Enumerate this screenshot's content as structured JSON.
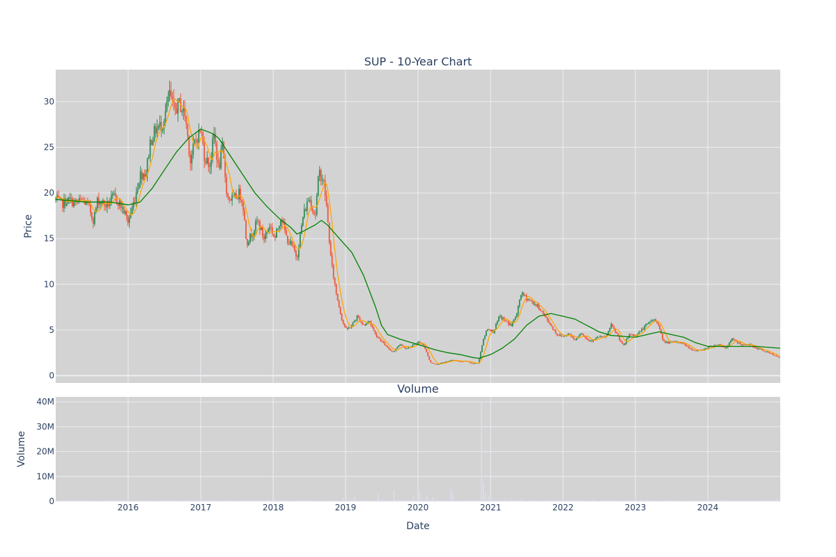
{
  "colors": {
    "plot_bg": "#d3d3d3",
    "grid": "#ebeef3",
    "text": "#2a3f5f",
    "up": "#2e8b57",
    "down": "#ef553b",
    "ma_short": "#ffa500",
    "ma_long": "#008000",
    "volume": "#dcdcf0"
  },
  "chart_data": [
    {
      "type": "candlestick",
      "title": "SUP - 10-Year Chart",
      "xlabel": "",
      "ylabel": "Price",
      "x_range": [
        "2015-01-01",
        "2024-12-31"
      ],
      "ylim": [
        -0.8,
        33.5
      ],
      "y_ticks": [
        0,
        5,
        10,
        15,
        20,
        25,
        30
      ],
      "x_ticks": [
        "2016",
        "2017",
        "2018",
        "2019",
        "2020",
        "2021",
        "2022",
        "2023",
        "2024"
      ],
      "grid": true,
      "price_path": [
        [
          "2015-01-01",
          19.3
        ],
        [
          "2015-02-01",
          18.8
        ],
        [
          "2015-03-01",
          19.2
        ],
        [
          "2015-04-15",
          18.9
        ],
        [
          "2015-05-15",
          19.2
        ],
        [
          "2015-06-15",
          18.6
        ],
        [
          "2015-07-10",
          17.0
        ],
        [
          "2015-08-01",
          19.3
        ],
        [
          "2015-09-15",
          18.6
        ],
        [
          "2015-10-20",
          19.6
        ],
        [
          "2015-11-15",
          19.0
        ],
        [
          "2015-12-15",
          17.8
        ],
        [
          "2016-01-01",
          16.8
        ],
        [
          "2016-02-01",
          19.2
        ],
        [
          "2016-03-01",
          22.0
        ],
        [
          "2016-04-01",
          22.3
        ],
        [
          "2016-04-20",
          25.5
        ],
        [
          "2016-05-20",
          27.0
        ],
        [
          "2016-06-20",
          27.5
        ],
        [
          "2016-07-15",
          29.5
        ],
        [
          "2016-07-25",
          31.0
        ],
        [
          "2016-08-20",
          29.0
        ],
        [
          "2016-09-15",
          29.8
        ],
        [
          "2016-10-15",
          28.5
        ],
        [
          "2016-11-10",
          23.5
        ],
        [
          "2016-12-01",
          25.5
        ],
        [
          "2017-01-01",
          27.0
        ],
        [
          "2017-01-20",
          24.0
        ],
        [
          "2017-02-15",
          23.0
        ],
        [
          "2017-03-10",
          26.5
        ],
        [
          "2017-04-01",
          22.5
        ],
        [
          "2017-04-20",
          25.0
        ],
        [
          "2017-05-15",
          19.5
        ],
        [
          "2017-06-15",
          19.3
        ],
        [
          "2017-07-15",
          20.0
        ],
        [
          "2017-08-01",
          19.0
        ],
        [
          "2017-08-20",
          14.5
        ],
        [
          "2017-09-15",
          15.5
        ],
        [
          "2017-10-15",
          17.0
        ],
        [
          "2017-11-15",
          15.0
        ],
        [
          "2017-12-15",
          16.5
        ],
        [
          "2018-01-10",
          15.0
        ],
        [
          "2018-02-10",
          17.5
        ],
        [
          "2018-03-10",
          15.0
        ],
        [
          "2018-04-10",
          14.0
        ],
        [
          "2018-05-01",
          13.0
        ],
        [
          "2018-06-01",
          17.5
        ],
        [
          "2018-07-01",
          19.5
        ],
        [
          "2018-08-01",
          17.5
        ],
        [
          "2018-08-20",
          22.3
        ],
        [
          "2018-09-10",
          21.5
        ],
        [
          "2018-09-25",
          19.0
        ],
        [
          "2018-10-20",
          12.5
        ],
        [
          "2018-11-15",
          9.0
        ],
        [
          "2018-12-15",
          6.0
        ],
        [
          "2019-01-05",
          5.0
        ],
        [
          "2019-02-01",
          5.5
        ],
        [
          "2019-03-01",
          6.5
        ],
        [
          "2019-04-01",
          5.5
        ],
        [
          "2019-05-01",
          6.0
        ],
        [
          "2019-06-01",
          4.5
        ],
        [
          "2019-07-01",
          3.8
        ],
        [
          "2019-08-01",
          3.0
        ],
        [
          "2019-09-01",
          2.6
        ],
        [
          "2019-10-01",
          3.5
        ],
        [
          "2019-11-01",
          3.0
        ],
        [
          "2019-12-01",
          3.2
        ],
        [
          "2020-01-01",
          3.7
        ],
        [
          "2020-02-01",
          3.3
        ],
        [
          "2020-03-01",
          1.5
        ],
        [
          "2020-04-01",
          1.2
        ],
        [
          "2020-05-01",
          1.4
        ],
        [
          "2020-06-01",
          1.6
        ],
        [
          "2020-07-01",
          1.7
        ],
        [
          "2020-08-01",
          1.5
        ],
        [
          "2020-09-01",
          1.6
        ],
        [
          "2020-10-01",
          1.3
        ],
        [
          "2020-11-01",
          1.4
        ],
        [
          "2020-11-20",
          3.5
        ],
        [
          "2020-12-15",
          5.2
        ],
        [
          "2021-01-15",
          4.8
        ],
        [
          "2021-02-15",
          6.5
        ],
        [
          "2021-03-15",
          6.0
        ],
        [
          "2021-04-15",
          5.5
        ],
        [
          "2021-05-15",
          6.8
        ],
        [
          "2021-06-01",
          9.0
        ],
        [
          "2021-07-01",
          8.5
        ],
        [
          "2021-08-01",
          8.0
        ],
        [
          "2021-09-01",
          7.5
        ],
        [
          "2021-10-01",
          6.5
        ],
        [
          "2021-11-01",
          5.5
        ],
        [
          "2021-12-01",
          4.5
        ],
        [
          "2022-01-01",
          4.3
        ],
        [
          "2022-02-01",
          4.6
        ],
        [
          "2022-03-01",
          3.9
        ],
        [
          "2022-04-01",
          4.7
        ],
        [
          "2022-05-01",
          4.0
        ],
        [
          "2022-06-01",
          3.8
        ],
        [
          "2022-07-01",
          4.3
        ],
        [
          "2022-08-01",
          4.1
        ],
        [
          "2022-09-01",
          5.5
        ],
        [
          "2022-10-01",
          4.5
        ],
        [
          "2022-11-01",
          3.2
        ],
        [
          "2022-12-01",
          4.5
        ],
        [
          "2023-01-01",
          4.4
        ],
        [
          "2023-02-01",
          5.0
        ],
        [
          "2023-03-01",
          5.6
        ],
        [
          "2023-04-01",
          6.2
        ],
        [
          "2023-05-01",
          5.5
        ],
        [
          "2023-05-20",
          3.7
        ],
        [
          "2023-07-01",
          3.6
        ],
        [
          "2023-08-01",
          3.7
        ],
        [
          "2023-09-01",
          3.5
        ],
        [
          "2023-10-01",
          3.0
        ],
        [
          "2023-11-01",
          2.7
        ],
        [
          "2023-12-01",
          2.8
        ],
        [
          "2024-01-01",
          3.1
        ],
        [
          "2024-02-01",
          3.3
        ],
        [
          "2024-03-01",
          3.4
        ],
        [
          "2024-04-01",
          3.0
        ],
        [
          "2024-05-01",
          4.0
        ],
        [
          "2024-06-01",
          3.6
        ],
        [
          "2024-07-01",
          3.3
        ],
        [
          "2024-08-01",
          3.4
        ],
        [
          "2024-09-01",
          3.0
        ],
        [
          "2024-10-01",
          2.8
        ],
        [
          "2024-11-01",
          2.5
        ],
        [
          "2024-12-01",
          2.2
        ],
        [
          "2024-12-31",
          1.9
        ]
      ],
      "moving_average_long": [
        [
          "2015-01-01",
          19.3
        ],
        [
          "2015-06-01",
          19.0
        ],
        [
          "2015-10-01",
          19.0
        ],
        [
          "2016-01-01",
          18.7
        ],
        [
          "2016-03-01",
          19.0
        ],
        [
          "2016-05-01",
          20.5
        ],
        [
          "2016-07-01",
          22.5
        ],
        [
          "2016-09-01",
          24.5
        ],
        [
          "2016-11-01",
          26.0
        ],
        [
          "2017-01-01",
          27.0
        ],
        [
          "2017-03-01",
          26.5
        ],
        [
          "2017-04-01",
          26.0
        ],
        [
          "2017-06-01",
          24.0
        ],
        [
          "2017-08-01",
          22.0
        ],
        [
          "2017-10-01",
          20.0
        ],
        [
          "2017-12-01",
          18.5
        ],
        [
          "2018-02-01",
          17.2
        ],
        [
          "2018-04-01",
          16.2
        ],
        [
          "2018-05-01",
          15.5
        ],
        [
          "2018-06-01",
          15.8
        ],
        [
          "2018-08-01",
          16.5
        ],
        [
          "2018-09-01",
          17.0
        ],
        [
          "2018-10-01",
          16.5
        ],
        [
          "2018-12-01",
          15.0
        ],
        [
          "2019-02-01",
          13.5
        ],
        [
          "2019-04-01",
          11.0
        ],
        [
          "2019-06-01",
          7.5
        ],
        [
          "2019-07-01",
          5.5
        ],
        [
          "2019-08-01",
          4.5
        ],
        [
          "2019-10-01",
          4.0
        ],
        [
          "2019-12-01",
          3.6
        ],
        [
          "2020-02-01",
          3.2
        ],
        [
          "2020-04-01",
          2.8
        ],
        [
          "2020-06-01",
          2.5
        ],
        [
          "2020-08-01",
          2.3
        ],
        [
          "2020-10-01",
          2.0
        ],
        [
          "2020-11-01",
          1.9
        ],
        [
          "2021-01-01",
          2.3
        ],
        [
          "2021-03-01",
          3.0
        ],
        [
          "2021-05-01",
          4.0
        ],
        [
          "2021-07-01",
          5.5
        ],
        [
          "2021-09-01",
          6.5
        ],
        [
          "2021-11-01",
          6.8
        ],
        [
          "2022-01-01",
          6.5
        ],
        [
          "2022-03-01",
          6.2
        ],
        [
          "2022-05-01",
          5.5
        ],
        [
          "2022-07-01",
          4.8
        ],
        [
          "2022-09-01",
          4.4
        ],
        [
          "2022-11-01",
          4.3
        ],
        [
          "2023-01-01",
          4.2
        ],
        [
          "2023-03-01",
          4.5
        ],
        [
          "2023-05-01",
          4.8
        ],
        [
          "2023-07-01",
          4.5
        ],
        [
          "2023-09-01",
          4.2
        ],
        [
          "2023-11-01",
          3.6
        ],
        [
          "2024-01-01",
          3.2
        ],
        [
          "2024-03-01",
          3.2
        ],
        [
          "2024-06-01",
          3.2
        ],
        [
          "2024-09-01",
          3.2
        ],
        [
          "2024-12-31",
          3.0
        ]
      ]
    },
    {
      "type": "bar",
      "title": "Volume",
      "xlabel": "Date",
      "ylabel": "Volume",
      "ylim": [
        0,
        42000000
      ],
      "y_ticks": [
        0,
        10000000,
        20000000,
        30000000,
        40000000
      ],
      "y_tick_labels": [
        "0",
        "10M",
        "20M",
        "30M",
        "40M"
      ],
      "x_ticks": [
        "2016",
        "2017",
        "2018",
        "2019",
        "2020",
        "2021",
        "2022",
        "2023",
        "2024"
      ],
      "grid": true,
      "base_volume": 400000,
      "spikes": [
        [
          "2018-12-20",
          1500000
        ],
        [
          "2019-02-15",
          1800000
        ],
        [
          "2019-06-15",
          3000000
        ],
        [
          "2019-09-01",
          4500000
        ],
        [
          "2019-12-10",
          2000000
        ],
        [
          "2020-01-10",
          4200000
        ],
        [
          "2020-02-15",
          2200000
        ],
        [
          "2020-03-15",
          1500000
        ],
        [
          "2020-06-15",
          5000000
        ],
        [
          "2020-06-25",
          3500000
        ],
        [
          "2020-11-16",
          40000000
        ],
        [
          "2020-11-25",
          8000000
        ],
        [
          "2020-12-05",
          3500000
        ],
        [
          "2020-12-20",
          2500000
        ],
        [
          "2021-03-10",
          1500000
        ],
        [
          "2021-06-05",
          1200000
        ],
        [
          "2022-06-01",
          800000
        ],
        [
          "2023-02-01",
          700000
        ]
      ]
    }
  ]
}
